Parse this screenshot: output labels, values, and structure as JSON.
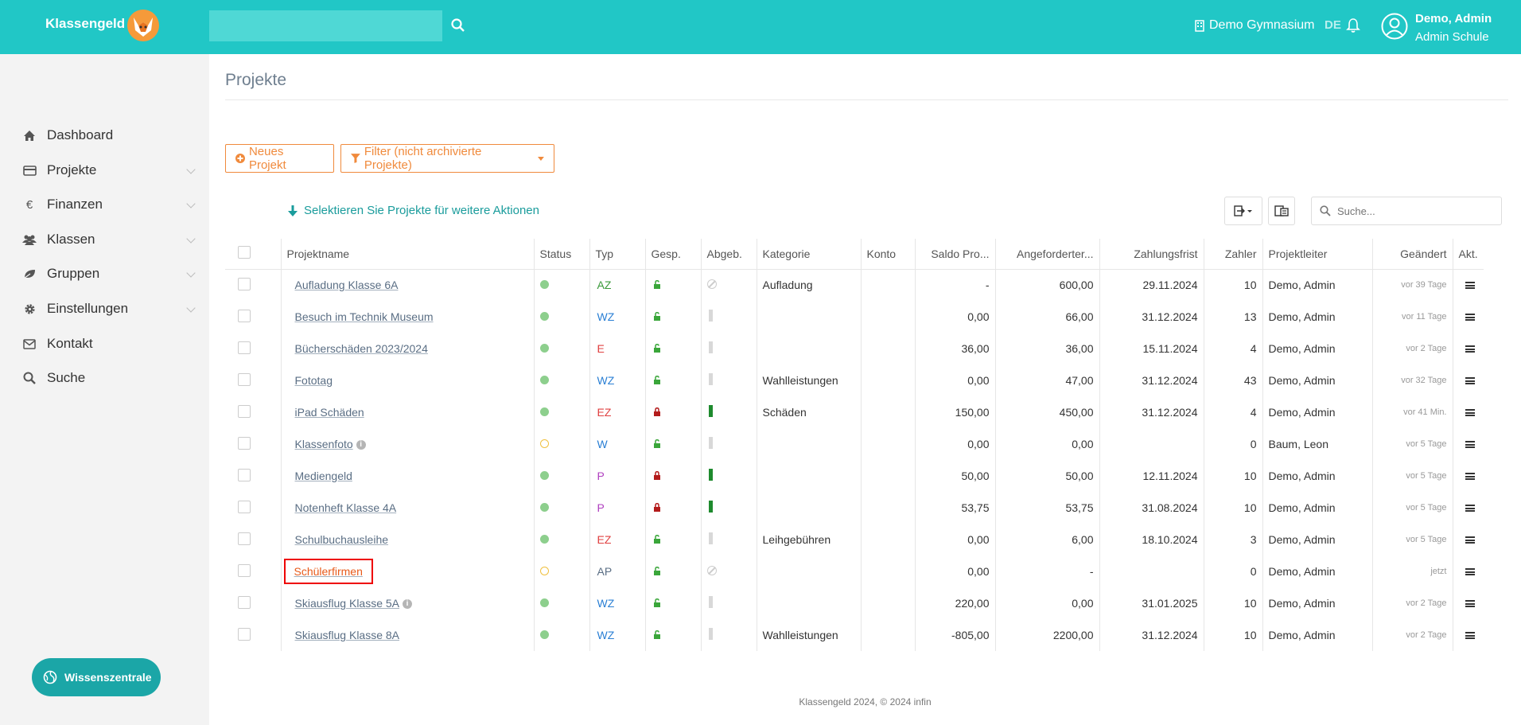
{
  "header": {
    "brand": "Klassengeld",
    "search_placeholder": "",
    "school": "Demo Gymnasium",
    "language": "DE",
    "user_name": "Demo, Admin",
    "user_role": "Admin Schule"
  },
  "sidebar": {
    "items": [
      {
        "label": "Dashboard",
        "icon": "home-icon"
      },
      {
        "label": "Projekte",
        "icon": "card-icon"
      },
      {
        "label": "Finanzen",
        "icon": "euro-icon"
      },
      {
        "label": "Klassen",
        "icon": "users-icon"
      },
      {
        "label": "Gruppen",
        "icon": "leaf-icon"
      },
      {
        "label": "Einstellungen",
        "icon": "gear-icon"
      },
      {
        "label": "Kontakt",
        "icon": "envelope-icon"
      },
      {
        "label": "Suche",
        "icon": "search-icon"
      }
    ],
    "wiki_label": "Wissenszentrale"
  },
  "main": {
    "title": "Projekte",
    "new_project_label": "Neues Projekt",
    "filter_label": "Filter (nicht archivierte Projekte)",
    "select_hint": "Selektieren Sie Projekte für weitere Aktionen",
    "search_placeholder": "Suche..."
  },
  "table": {
    "headers": [
      "Projektname",
      "Status",
      "Typ",
      "Gesp.",
      "Abgeb.",
      "Kategorie",
      "Konto",
      "Saldo Pro...",
      "Angeforderter...",
      "Zahlungsfrist",
      "Zahler",
      "Projektleiter",
      "Geändert",
      "Akt."
    ],
    "rows": [
      {
        "name": "Aufladung Klasse 6A",
        "info": false,
        "status": "active",
        "type": "AZ",
        "type_color": "#3a9a3a",
        "locked": false,
        "submitted": "none",
        "category": "Aufladung",
        "konto": "",
        "saldo": "-",
        "requested": "600,00",
        "deadline": "29.11.2024",
        "payers": "10",
        "leader": "Demo, Admin",
        "changed": "vor 39 Tage"
      },
      {
        "name": "Besuch im Technik Museum",
        "info": false,
        "status": "active",
        "type": "WZ",
        "type_color": "#2a7fd4",
        "locked": false,
        "submitted": "grey",
        "category": "",
        "konto": "",
        "saldo": "0,00",
        "requested": "66,00",
        "deadline": "31.12.2024",
        "payers": "13",
        "leader": "Demo, Admin",
        "changed": "vor 11 Tage"
      },
      {
        "name": "Bücherschäden 2023/2024",
        "info": false,
        "status": "active",
        "type": "E",
        "type_color": "#e04040",
        "locked": false,
        "submitted": "grey",
        "category": "",
        "konto": "",
        "saldo": "36,00",
        "requested": "36,00",
        "deadline": "15.11.2024",
        "payers": "4",
        "leader": "Demo, Admin",
        "changed": "vor 2 Tage"
      },
      {
        "name": "Fototag",
        "info": false,
        "status": "active",
        "type": "WZ",
        "type_color": "#2a7fd4",
        "locked": false,
        "submitted": "grey",
        "category": "Wahlleistungen",
        "konto": "",
        "saldo": "0,00",
        "requested": "47,00",
        "deadline": "31.12.2024",
        "payers": "43",
        "leader": "Demo, Admin",
        "changed": "vor 32 Tage"
      },
      {
        "name": "iPad Schäden",
        "info": false,
        "status": "active",
        "type": "EZ",
        "type_color": "#e04040",
        "locked": true,
        "submitted": "green",
        "category": "Schäden",
        "konto": "",
        "saldo": "150,00",
        "requested": "450,00",
        "deadline": "31.12.2024",
        "payers": "4",
        "leader": "Demo, Admin",
        "changed": "vor 41 Min."
      },
      {
        "name": "Klassenfoto",
        "info": true,
        "status": "pending",
        "type": "W",
        "type_color": "#2a7fd4",
        "locked": false,
        "submitted": "grey",
        "category": "",
        "konto": "",
        "saldo": "0,00",
        "requested": "0,00",
        "deadline": "",
        "payers": "0",
        "leader": "Baum, Leon",
        "changed": "vor 5 Tage"
      },
      {
        "name": "Mediengeld",
        "info": false,
        "status": "active",
        "type": "P",
        "type_color": "#b040c0",
        "locked": true,
        "submitted": "green",
        "category": "",
        "konto": "",
        "saldo": "50,00",
        "requested": "50,00",
        "deadline": "12.11.2024",
        "payers": "10",
        "leader": "Demo, Admin",
        "changed": "vor 5 Tage"
      },
      {
        "name": "Notenheft Klasse 4A",
        "info": false,
        "status": "active",
        "type": "P",
        "type_color": "#b040c0",
        "locked": true,
        "submitted": "green",
        "category": "",
        "konto": "",
        "saldo": "53,75",
        "requested": "53,75",
        "deadline": "31.08.2024",
        "payers": "10",
        "leader": "Demo, Admin",
        "changed": "vor 5 Tage"
      },
      {
        "name": "Schulbuchausleihe",
        "info": false,
        "status": "active",
        "type": "EZ",
        "type_color": "#e04040",
        "locked": false,
        "submitted": "grey",
        "category": "Leihgebühren",
        "konto": "",
        "saldo": "0,00",
        "requested": "6,00",
        "deadline": "18.10.2024",
        "payers": "3",
        "leader": "Demo, Admin",
        "changed": "vor 5 Tage"
      },
      {
        "name": "Schülerfirmen",
        "info": false,
        "highlighted": true,
        "status": "pending",
        "type": "AP",
        "type_color": "#5a6e84",
        "locked": false,
        "submitted": "none",
        "category": "",
        "konto": "",
        "saldo": "0,00",
        "requested": "-",
        "deadline": "",
        "payers": "0",
        "leader": "Demo, Admin",
        "changed": "jetzt"
      },
      {
        "name": "Skiausflug Klasse 5A",
        "info": true,
        "status": "active",
        "type": "WZ",
        "type_color": "#2a7fd4",
        "locked": false,
        "submitted": "grey",
        "category": "",
        "konto": "",
        "saldo": "220,00",
        "requested": "0,00",
        "deadline": "31.01.2025",
        "payers": "10",
        "leader": "Demo, Admin",
        "changed": "vor 2 Tage"
      },
      {
        "name": "Skiausflug Klasse 8A",
        "info": false,
        "status": "active",
        "type": "WZ",
        "type_color": "#2a7fd4",
        "locked": false,
        "submitted": "grey",
        "category": "Wahlleistungen",
        "konto": "",
        "saldo": "-805,00",
        "requested": "2200,00",
        "deadline": "31.12.2024",
        "payers": "10",
        "leader": "Demo, Admin",
        "changed": "vor 2 Tage"
      }
    ]
  },
  "footer": {
    "text": "Klassengeld 2024, © 2024 infin"
  },
  "colors": {
    "accent": "#21c7c6",
    "orange": "#f08a3c",
    "link": "#5a6e84"
  }
}
